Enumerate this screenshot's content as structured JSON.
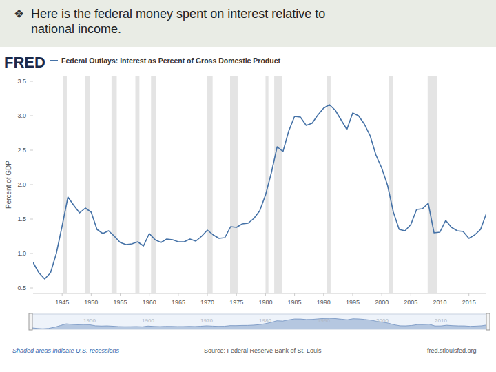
{
  "slide": {
    "bullet": "❖",
    "title": "Here is the federal money spent on interest relative to national income."
  },
  "chart_data": {
    "type": "line",
    "logo": "FRED",
    "title": "Federal Outlays: Interest as Percent of Gross Domestic Product",
    "y_label": "Percent of GDP",
    "footnote": "Shaded areas indicate U.S. recessions",
    "source": "Source: Federal Reserve Bank of St. Louis",
    "url": "fred.stlouisfed.org",
    "color": "#4572a7",
    "grid": false,
    "x": [
      1940,
      1941,
      1942,
      1943,
      1944,
      1945,
      1946,
      1947,
      1948,
      1949,
      1950,
      1951,
      1952,
      1953,
      1954,
      1955,
      1956,
      1957,
      1958,
      1959,
      1960,
      1961,
      1962,
      1963,
      1964,
      1965,
      1966,
      1967,
      1968,
      1969,
      1970,
      1971,
      1972,
      1973,
      1974,
      1975,
      1976,
      1977,
      1978,
      1979,
      1980,
      1981,
      1982,
      1983,
      1984,
      1985,
      1986,
      1987,
      1988,
      1989,
      1990,
      1991,
      1992,
      1993,
      1994,
      1995,
      1996,
      1997,
      1998,
      1999,
      2000,
      2001,
      2002,
      2003,
      2004,
      2005,
      2006,
      2007,
      2008,
      2009,
      2010,
      2011,
      2012,
      2013,
      2014,
      2015,
      2016,
      2017,
      2018
    ],
    "values": [
      0.87,
      0.72,
      0.63,
      0.72,
      1.0,
      1.4,
      1.82,
      1.7,
      1.59,
      1.66,
      1.6,
      1.35,
      1.29,
      1.33,
      1.25,
      1.16,
      1.13,
      1.14,
      1.17,
      1.11,
      1.29,
      1.2,
      1.16,
      1.21,
      1.2,
      1.17,
      1.17,
      1.21,
      1.18,
      1.25,
      1.34,
      1.27,
      1.22,
      1.23,
      1.39,
      1.38,
      1.43,
      1.44,
      1.51,
      1.62,
      1.85,
      2.17,
      2.55,
      2.48,
      2.78,
      2.99,
      2.98,
      2.86,
      2.89,
      3.01,
      3.11,
      3.16,
      3.08,
      2.94,
      2.8,
      3.04,
      3.0,
      2.88,
      2.71,
      2.43,
      2.24,
      1.99,
      1.6,
      1.35,
      1.33,
      1.42,
      1.64,
      1.65,
      1.73,
      1.3,
      1.31,
      1.48,
      1.38,
      1.33,
      1.32,
      1.22,
      1.27,
      1.35,
      1.58
    ],
    "xlim": [
      1940,
      2018
    ],
    "xticks": [
      1945,
      1950,
      1955,
      1960,
      1965,
      1970,
      1975,
      1980,
      1985,
      1990,
      1995,
      2000,
      2005,
      2010,
      2015
    ],
    "ylim": [
      0.5,
      3.5
    ],
    "yticks": [
      0.5,
      {
        "value": 1,
        "label": "1.0"
      },
      1.5,
      {
        "value": 2,
        "label": "2.0"
      },
      2.5,
      {
        "value": 3,
        "label": "3.0"
      },
      3.5
    ],
    "recessions": [
      {
        "start": 1945.1,
        "end": 1945.8
      },
      {
        "start": 1948.9,
        "end": 1949.8
      },
      {
        "start": 1953.5,
        "end": 1954.4
      },
      {
        "start": 1957.6,
        "end": 1958.3
      },
      {
        "start": 1960.3,
        "end": 1961.1
      },
      {
        "start": 1969.9,
        "end": 1970.9
      },
      {
        "start": 1973.9,
        "end": 1975.2
      },
      {
        "start": 1980.0,
        "end": 1980.5
      },
      {
        "start": 1981.5,
        "end": 1982.9
      },
      {
        "start": 1990.5,
        "end": 1991.2
      },
      {
        "start": 2001.2,
        "end": 2001.9
      },
      {
        "start": 2007.9,
        "end": 2009.5
      }
    ],
    "navigator_xticks": [
      1950,
      1960,
      1970,
      1980,
      1990,
      2000,
      2010
    ]
  }
}
